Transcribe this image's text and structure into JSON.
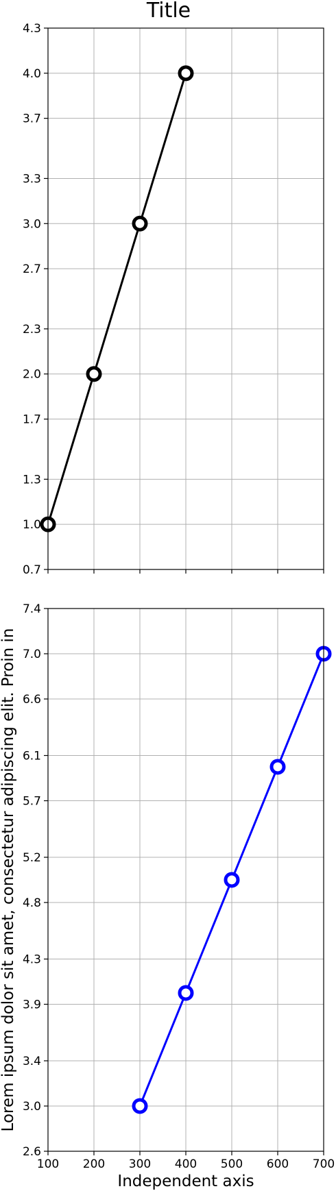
{
  "chart_data": [
    {
      "type": "line",
      "title": "Title",
      "xlabel": "",
      "ylabel": "",
      "xlim": [
        100,
        700
      ],
      "ylim": [
        0.7,
        4.3
      ],
      "xticks": [
        100,
        200,
        300,
        400,
        500,
        600,
        700
      ],
      "xtick_labels": [],
      "yticks": [
        0.7,
        1.0,
        1.3,
        1.7,
        2.0,
        2.3,
        2.7,
        3.0,
        3.3,
        3.7,
        4.0,
        4.3
      ],
      "ytick_labels": [
        "0.7",
        "1.0",
        "1.3",
        "1.7",
        "2.0",
        "2.3",
        "2.7",
        "3.0",
        "3.3",
        "3.7",
        "4.0",
        "4.3"
      ],
      "grid": true,
      "series": [
        {
          "x": [
            100,
            200,
            300,
            400
          ],
          "y": [
            1.0,
            2.0,
            3.0,
            4.0
          ],
          "color": "#000000",
          "marker": "open-circle"
        }
      ]
    },
    {
      "type": "line",
      "title": "",
      "xlabel": "Independent axis",
      "ylabel": "Lorem ipsum dolor sit amet, consectetur adipiscing elit. Proin in",
      "xlim": [
        100,
        700
      ],
      "ylim": [
        2.6,
        7.4
      ],
      "xticks": [
        100,
        200,
        300,
        400,
        500,
        600,
        700
      ],
      "xtick_labels": [
        "100",
        "200",
        "300",
        "400",
        "500",
        "600",
        "700"
      ],
      "yticks": [
        2.6,
        3.0,
        3.4,
        3.9,
        4.3,
        4.8,
        5.2,
        5.7,
        6.1,
        6.6,
        7.0,
        7.4
      ],
      "ytick_labels": [
        "2.6",
        "3.0",
        "3.4",
        "3.9",
        "4.3",
        "4.8",
        "5.2",
        "5.7",
        "6.1",
        "6.6",
        "7.0",
        "7.4"
      ],
      "grid": true,
      "series": [
        {
          "x": [
            300,
            400,
            500,
            600,
            700
          ],
          "y": [
            3.0,
            4.0,
            5.0,
            6.0,
            7.0
          ],
          "color": "#0000ff",
          "marker": "open-circle"
        }
      ]
    }
  ]
}
